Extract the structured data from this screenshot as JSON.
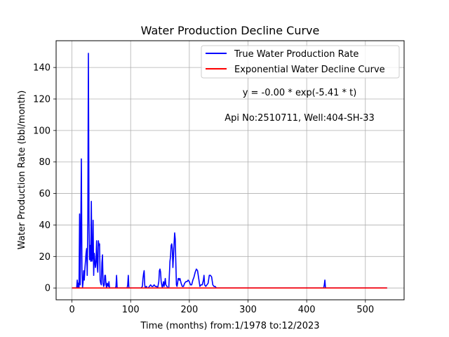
{
  "chart_data": {
    "type": "line",
    "title": "Water Production Decline Curve",
    "xlabel": "Time (months) from:1/1978 to:12/2023",
    "ylabel": "Water Production Rate (bbl/month)",
    "xlim": [
      -27,
      566
    ],
    "ylim": [
      -7.5,
      157
    ],
    "xticks": [
      0,
      100,
      200,
      300,
      400,
      500
    ],
    "yticks": [
      0,
      20,
      40,
      60,
      80,
      100,
      120,
      140
    ],
    "grid": true,
    "legend_position": "top-right",
    "annotations": [
      "y = -0.00 * exp(-5.41 * t)",
      "Api No:2510711, Well:404-SH-33"
    ],
    "series": [
      {
        "name": "True Water Production Rate",
        "color": "#0000ff",
        "points": [
          [
            0,
            0
          ],
          [
            8,
            0
          ],
          [
            9,
            5
          ],
          [
            10,
            0
          ],
          [
            11,
            3
          ],
          [
            12,
            0
          ],
          [
            13,
            47
          ],
          [
            14,
            2
          ],
          [
            15,
            36
          ],
          [
            16,
            82
          ],
          [
            17,
            12
          ],
          [
            18,
            0
          ],
          [
            19,
            4
          ],
          [
            20,
            11
          ],
          [
            21,
            5
          ],
          [
            22,
            12
          ],
          [
            23,
            17
          ],
          [
            24,
            22
          ],
          [
            25,
            25
          ],
          [
            26,
            8
          ],
          [
            27,
            43
          ],
          [
            28,
            149
          ],
          [
            29,
            45
          ],
          [
            30,
            18
          ],
          [
            31,
            27
          ],
          [
            32,
            17
          ],
          [
            33,
            55
          ],
          [
            34,
            17
          ],
          [
            35,
            19
          ],
          [
            36,
            43
          ],
          [
            37,
            8
          ],
          [
            38,
            22
          ],
          [
            39,
            17
          ],
          [
            40,
            13
          ],
          [
            41,
            17
          ],
          [
            42,
            30
          ],
          [
            43,
            14
          ],
          [
            44,
            10
          ],
          [
            45,
            30
          ],
          [
            46,
            27
          ],
          [
            47,
            28
          ],
          [
            48,
            5
          ],
          [
            49,
            3
          ],
          [
            50,
            2
          ],
          [
            51,
            16
          ],
          [
            52,
            21
          ],
          [
            53,
            3
          ],
          [
            54,
            1
          ],
          [
            55,
            2
          ],
          [
            56,
            8
          ],
          [
            57,
            8
          ],
          [
            58,
            2
          ],
          [
            59,
            0
          ],
          [
            60,
            3
          ],
          [
            62,
            1
          ],
          [
            63,
            4
          ],
          [
            64,
            0
          ],
          [
            66,
            0
          ],
          [
            68,
            0
          ],
          [
            70,
            0
          ],
          [
            72,
            0
          ],
          [
            74,
            0
          ],
          [
            75,
            1
          ],
          [
            76,
            8
          ],
          [
            77,
            0
          ],
          [
            80,
            0
          ],
          [
            90,
            0
          ],
          [
            94,
            0
          ],
          [
            95,
            2
          ],
          [
            96,
            8
          ],
          [
            97,
            0
          ],
          [
            110,
            0
          ],
          [
            118,
            0
          ],
          [
            120,
            1
          ],
          [
            121,
            6
          ],
          [
            122,
            9
          ],
          [
            123,
            11
          ],
          [
            124,
            2
          ],
          [
            125,
            0
          ],
          [
            127,
            1
          ],
          [
            128,
            0
          ],
          [
            130,
            0
          ],
          [
            132,
            1
          ],
          [
            134,
            2
          ],
          [
            136,
            1
          ],
          [
            138,
            1
          ],
          [
            140,
            2
          ],
          [
            142,
            1
          ],
          [
            144,
            1
          ],
          [
            146,
            0
          ],
          [
            148,
            4
          ],
          [
            149,
            11
          ],
          [
            150,
            12
          ],
          [
            151,
            10
          ],
          [
            152,
            4
          ],
          [
            153,
            2
          ],
          [
            154,
            0
          ],
          [
            156,
            4
          ],
          [
            157,
            1
          ],
          [
            158,
            3
          ],
          [
            159,
            6
          ],
          [
            160,
            2
          ],
          [
            162,
            1
          ],
          [
            163,
            0
          ],
          [
            165,
            0
          ],
          [
            167,
            17
          ],
          [
            168,
            20
          ],
          [
            169,
            27
          ],
          [
            170,
            28
          ],
          [
            171,
            25
          ],
          [
            172,
            13
          ],
          [
            173,
            20
          ],
          [
            174,
            28
          ],
          [
            175,
            35
          ],
          [
            176,
            31
          ],
          [
            177,
            16
          ],
          [
            178,
            2
          ],
          [
            179,
            1
          ],
          [
            180,
            3
          ],
          [
            181,
            6
          ],
          [
            182,
            6
          ],
          [
            183,
            5
          ],
          [
            184,
            6
          ],
          [
            186,
            3
          ],
          [
            188,
            1
          ],
          [
            190,
            1
          ],
          [
            192,
            3
          ],
          [
            194,
            4
          ],
          [
            196,
            4
          ],
          [
            198,
            5
          ],
          [
            200,
            4
          ],
          [
            202,
            2
          ],
          [
            204,
            2
          ],
          [
            206,
            5
          ],
          [
            208,
            7
          ],
          [
            210,
            10
          ],
          [
            212,
            12
          ],
          [
            214,
            11
          ],
          [
            216,
            6
          ],
          [
            218,
            1
          ],
          [
            220,
            2
          ],
          [
            222,
            2
          ],
          [
            224,
            5
          ],
          [
            225,
            8
          ],
          [
            226,
            2
          ],
          [
            228,
            1
          ],
          [
            230,
            2
          ],
          [
            232,
            3
          ],
          [
            234,
            8
          ],
          [
            236,
            8
          ],
          [
            238,
            7
          ],
          [
            240,
            2
          ],
          [
            242,
            1
          ],
          [
            244,
            1
          ],
          [
            246,
            0
          ],
          [
            250,
            0
          ],
          [
            300,
            0
          ],
          [
            400,
            0
          ],
          [
            429,
            0
          ],
          [
            430,
            2
          ],
          [
            431,
            5
          ],
          [
            432,
            0
          ],
          [
            450,
            0
          ],
          [
            500,
            0
          ],
          [
            537,
            0
          ]
        ]
      },
      {
        "name": "Exponential Water Decline Curve",
        "color": "#ff0000",
        "points": [
          [
            0,
            0
          ],
          [
            537,
            0
          ]
        ]
      }
    ]
  }
}
